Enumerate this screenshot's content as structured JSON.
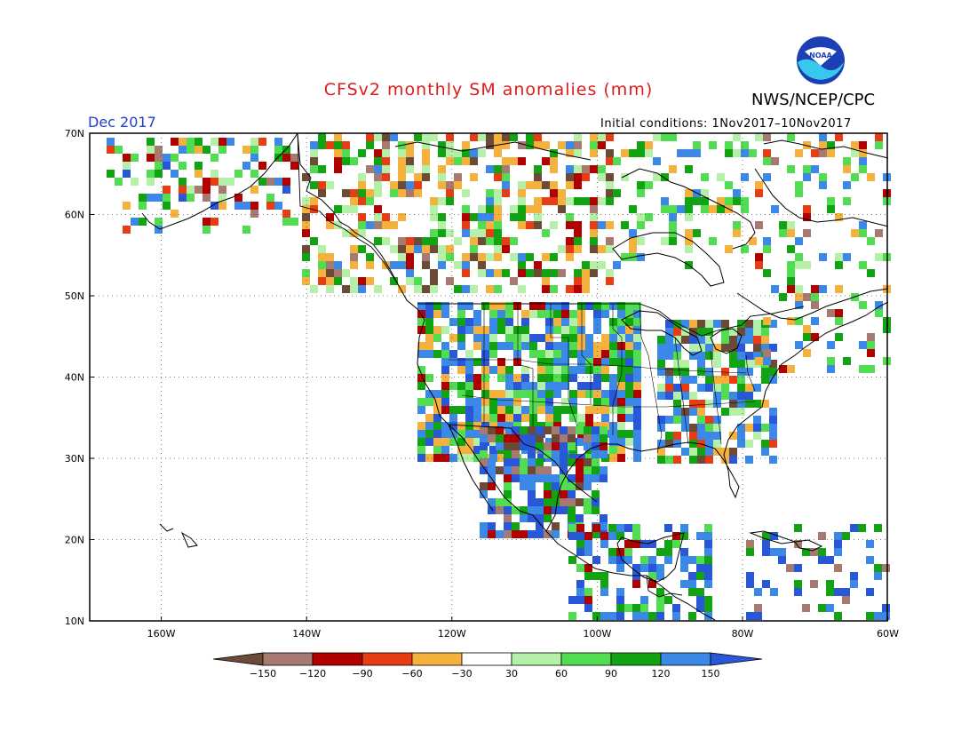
{
  "header": {
    "title": "CFSv2 monthly SM anomalies (mm)",
    "title_color": "#dd1c1c",
    "org": "NWS/NCEP/CPC",
    "logo_text": "NOAA",
    "month": "Dec 2017",
    "month_color": "#2040c8",
    "initial_conditions": "Initial conditions: 1Nov2017–10Nov2017"
  },
  "map": {
    "lon_range": [
      -170,
      -60
    ],
    "lat_range": [
      10,
      70
    ],
    "lat_labels": [
      "70N",
      "60N",
      "50N",
      "40N",
      "30N",
      "20N",
      "10N"
    ],
    "lon_labels": [
      "160W",
      "140W",
      "120W",
      "100W",
      "80W",
      "60W"
    ]
  },
  "colorbar": {
    "labels": [
      "−150",
      "−120",
      "−90",
      "−60",
      "−30",
      "30",
      "60",
      "90",
      "120",
      "150"
    ],
    "colors": [
      "#6b4a38",
      "#a67a70",
      "#b00000",
      "#e63d14",
      "#f5b13e",
      "#ffffff",
      "#b4f0a8",
      "#52dc52",
      "#11a311",
      "#3b88e6",
      "#2858d8"
    ]
  }
}
